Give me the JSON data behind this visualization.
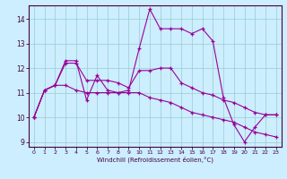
{
  "xlabel": "Windchill (Refroidissement éolien,°C)",
  "bg_color": "#cceeff",
  "line_color": "#990099",
  "grid_color": "#99cccc",
  "x_values": [
    0,
    1,
    2,
    3,
    4,
    5,
    6,
    7,
    8,
    9,
    10,
    11,
    12,
    13,
    14,
    15,
    16,
    17,
    18,
    19,
    20,
    21,
    22,
    23
  ],
  "series1": [
    10.0,
    11.1,
    11.3,
    12.3,
    12.3,
    10.7,
    11.7,
    11.1,
    11.0,
    11.1,
    12.8,
    14.4,
    13.6,
    13.6,
    13.6,
    13.4,
    13.6,
    13.1,
    10.8,
    9.7,
    9.0,
    9.6,
    10.1,
    10.1
  ],
  "series2": [
    10.0,
    11.1,
    11.3,
    12.2,
    12.2,
    11.5,
    11.5,
    11.5,
    11.4,
    11.2,
    11.9,
    11.9,
    12.0,
    12.0,
    11.4,
    11.2,
    11.0,
    10.9,
    10.7,
    10.6,
    10.4,
    10.2,
    10.1,
    10.1
  ],
  "series3": [
    10.0,
    11.1,
    11.3,
    11.3,
    11.1,
    11.0,
    11.0,
    11.0,
    11.0,
    11.0,
    11.0,
    10.8,
    10.7,
    10.6,
    10.4,
    10.2,
    10.1,
    10.0,
    9.9,
    9.8,
    9.6,
    9.4,
    9.3,
    9.2
  ],
  "ylim_min": 8.8,
  "ylim_max": 14.55,
  "yticks": [
    9,
    10,
    11,
    12,
    13,
    14
  ],
  "xticks": [
    0,
    1,
    2,
    3,
    4,
    5,
    6,
    7,
    8,
    9,
    10,
    11,
    12,
    13,
    14,
    15,
    16,
    17,
    18,
    19,
    20,
    21,
    22,
    23
  ],
  "xlim_min": -0.5,
  "xlim_max": 23.5
}
